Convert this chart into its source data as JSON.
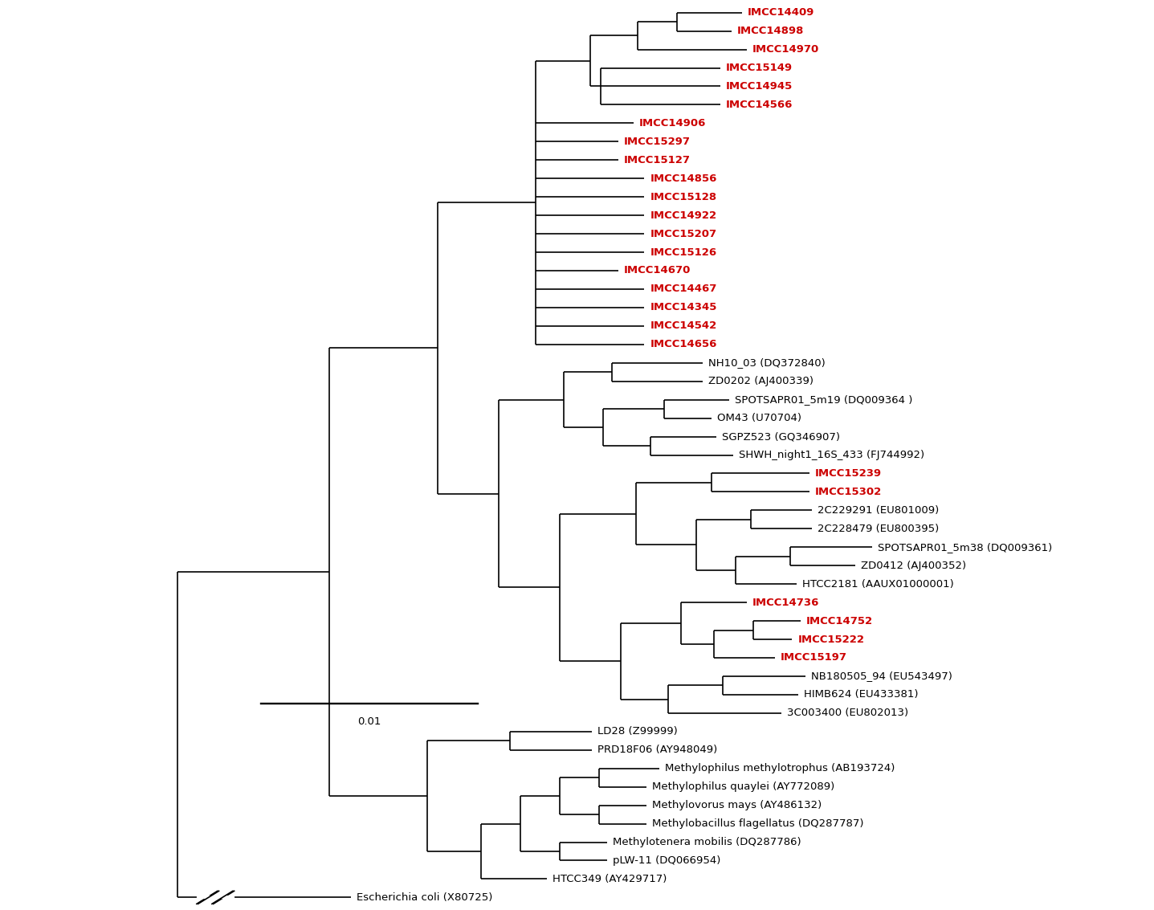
{
  "scale_bar_label": "0.01",
  "background_color": "#ffffff",
  "line_color": "#000000",
  "imcc_color": "#cc0000",
  "black_color": "#000000",
  "font_size": 9.5,
  "line_width": 1.2,
  "taxa": [
    {
      "name": "IMCC14409",
      "is_imcc": true
    },
    {
      "name": "IMCC14898",
      "is_imcc": true
    },
    {
      "name": "IMCC14970",
      "is_imcc": true
    },
    {
      "name": "IMCC15149",
      "is_imcc": true
    },
    {
      "name": "IMCC14945",
      "is_imcc": true
    },
    {
      "name": "IMCC14566",
      "is_imcc": true
    },
    {
      "name": "IMCC14906",
      "is_imcc": true
    },
    {
      "name": "IMCC15297",
      "is_imcc": true
    },
    {
      "name": "IMCC15127",
      "is_imcc": true
    },
    {
      "name": "IMCC14856",
      "is_imcc": true
    },
    {
      "name": "IMCC15128",
      "is_imcc": true
    },
    {
      "name": "IMCC14922",
      "is_imcc": true
    },
    {
      "name": "IMCC15207",
      "is_imcc": true
    },
    {
      "name": "IMCC15126",
      "is_imcc": true
    },
    {
      "name": "IMCC14670",
      "is_imcc": true
    },
    {
      "name": "IMCC14467",
      "is_imcc": true
    },
    {
      "name": "IMCC14345",
      "is_imcc": true
    },
    {
      "name": "IMCC14542",
      "is_imcc": true
    },
    {
      "name": "IMCC14656",
      "is_imcc": true
    },
    {
      "name": "NH10_03 (DQ372840)",
      "is_imcc": false
    },
    {
      "name": "ZD0202 (AJ400339)",
      "is_imcc": false
    },
    {
      "name": "SPOTSAPR01_5m19 (DQ009364 )",
      "is_imcc": false
    },
    {
      "name": "OM43 (U70704)",
      "is_imcc": false
    },
    {
      "name": "SGPZ523 (GQ346907)",
      "is_imcc": false
    },
    {
      "name": "SHWH_night1_16S_433 (FJ744992)",
      "is_imcc": false
    },
    {
      "name": "IMCC15239",
      "is_imcc": true
    },
    {
      "name": "IMCC15302",
      "is_imcc": true
    },
    {
      "name": "2C229291 (EU801009)",
      "is_imcc": false
    },
    {
      "name": "2C228479 (EU800395)",
      "is_imcc": false
    },
    {
      "name": "SPOTSAPR01_5m38 (DQ009361)",
      "is_imcc": false
    },
    {
      "name": "ZD0412 (AJ400352)",
      "is_imcc": false
    },
    {
      "name": "HTCC2181 (AAUX01000001)",
      "is_imcc": false
    },
    {
      "name": "IMCC14736",
      "is_imcc": true
    },
    {
      "name": "IMCC14752",
      "is_imcc": true
    },
    {
      "name": "IMCC15222",
      "is_imcc": true
    },
    {
      "name": "IMCC15197",
      "is_imcc": true
    },
    {
      "name": "NB180505_94 (EU543497)",
      "is_imcc": false
    },
    {
      "name": "HIMB624 (EU433381)",
      "is_imcc": false
    },
    {
      "name": "3C003400 (EU802013)",
      "is_imcc": false
    },
    {
      "name": "LD28 (Z99999)",
      "is_imcc": false
    },
    {
      "name": "PRD18F06 (AY948049)",
      "is_imcc": false
    },
    {
      "name": "Methylophilus methylotrophus (AB193724)",
      "is_imcc": false
    },
    {
      "name": "Methylophilus quaylei (AY772089)",
      "is_imcc": false
    },
    {
      "name": "Methylovorus mays (AY486132)",
      "is_imcc": false
    },
    {
      "name": "Methylobacillus flagellatus (DQ287787)",
      "is_imcc": false
    },
    {
      "name": "Methylotenera mobilis (DQ287786)",
      "is_imcc": false
    },
    {
      "name": "pLW-11 (DQ066954)",
      "is_imcc": false
    },
    {
      "name": "HTCC349 (AY429717)",
      "is_imcc": false
    },
    {
      "name": "Escherichia coli (X80725)",
      "is_imcc": false
    }
  ]
}
